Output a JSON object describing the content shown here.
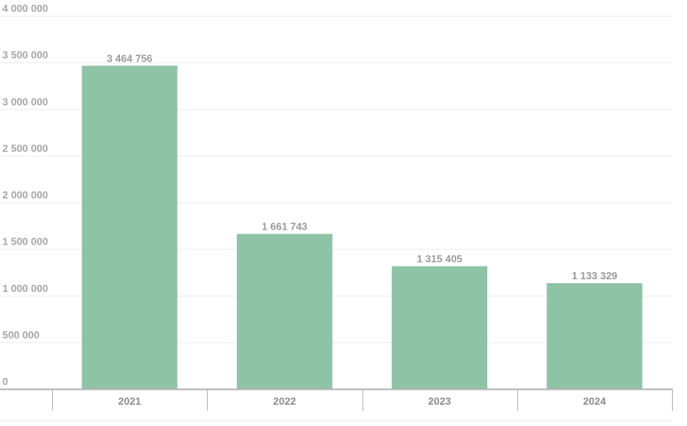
{
  "chart_data": {
    "type": "bar",
    "title": "",
    "xlabel": "",
    "ylabel": "",
    "categories": [
      "2021",
      "2022",
      "2023",
      "2024"
    ],
    "values": [
      3464756,
      1661743,
      1315405,
      1133329
    ],
    "value_labels": [
      "3 464 756",
      "1 661 743",
      "1 315 405",
      "1 133 329"
    ],
    "ylim": [
      0,
      4000000
    ],
    "yticks": [
      0,
      500000,
      1000000,
      1500000,
      2000000,
      2500000,
      3000000,
      3500000,
      4000000
    ],
    "ytick_labels": [
      "0",
      "500 000",
      "1 000 000",
      "1 500 000",
      "2 000 000",
      "2 500 000",
      "3 000 000",
      "3 500 000",
      "4 000 000"
    ],
    "grid": true,
    "legend": "none",
    "colors": {
      "bar": "#8fc3a6",
      "grid": "#ebebeb",
      "axis": "#b3b3b3",
      "tick_text": "#a6a6a6",
      "value_text": "#9a9a9a",
      "category_text": "#8c8c8c"
    }
  }
}
